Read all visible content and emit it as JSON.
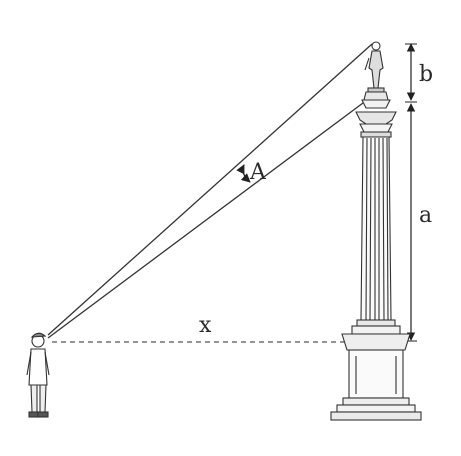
{
  "labels": {
    "angle": "A",
    "statue_height": "b",
    "column_height": "a",
    "distance": "x"
  }
}
